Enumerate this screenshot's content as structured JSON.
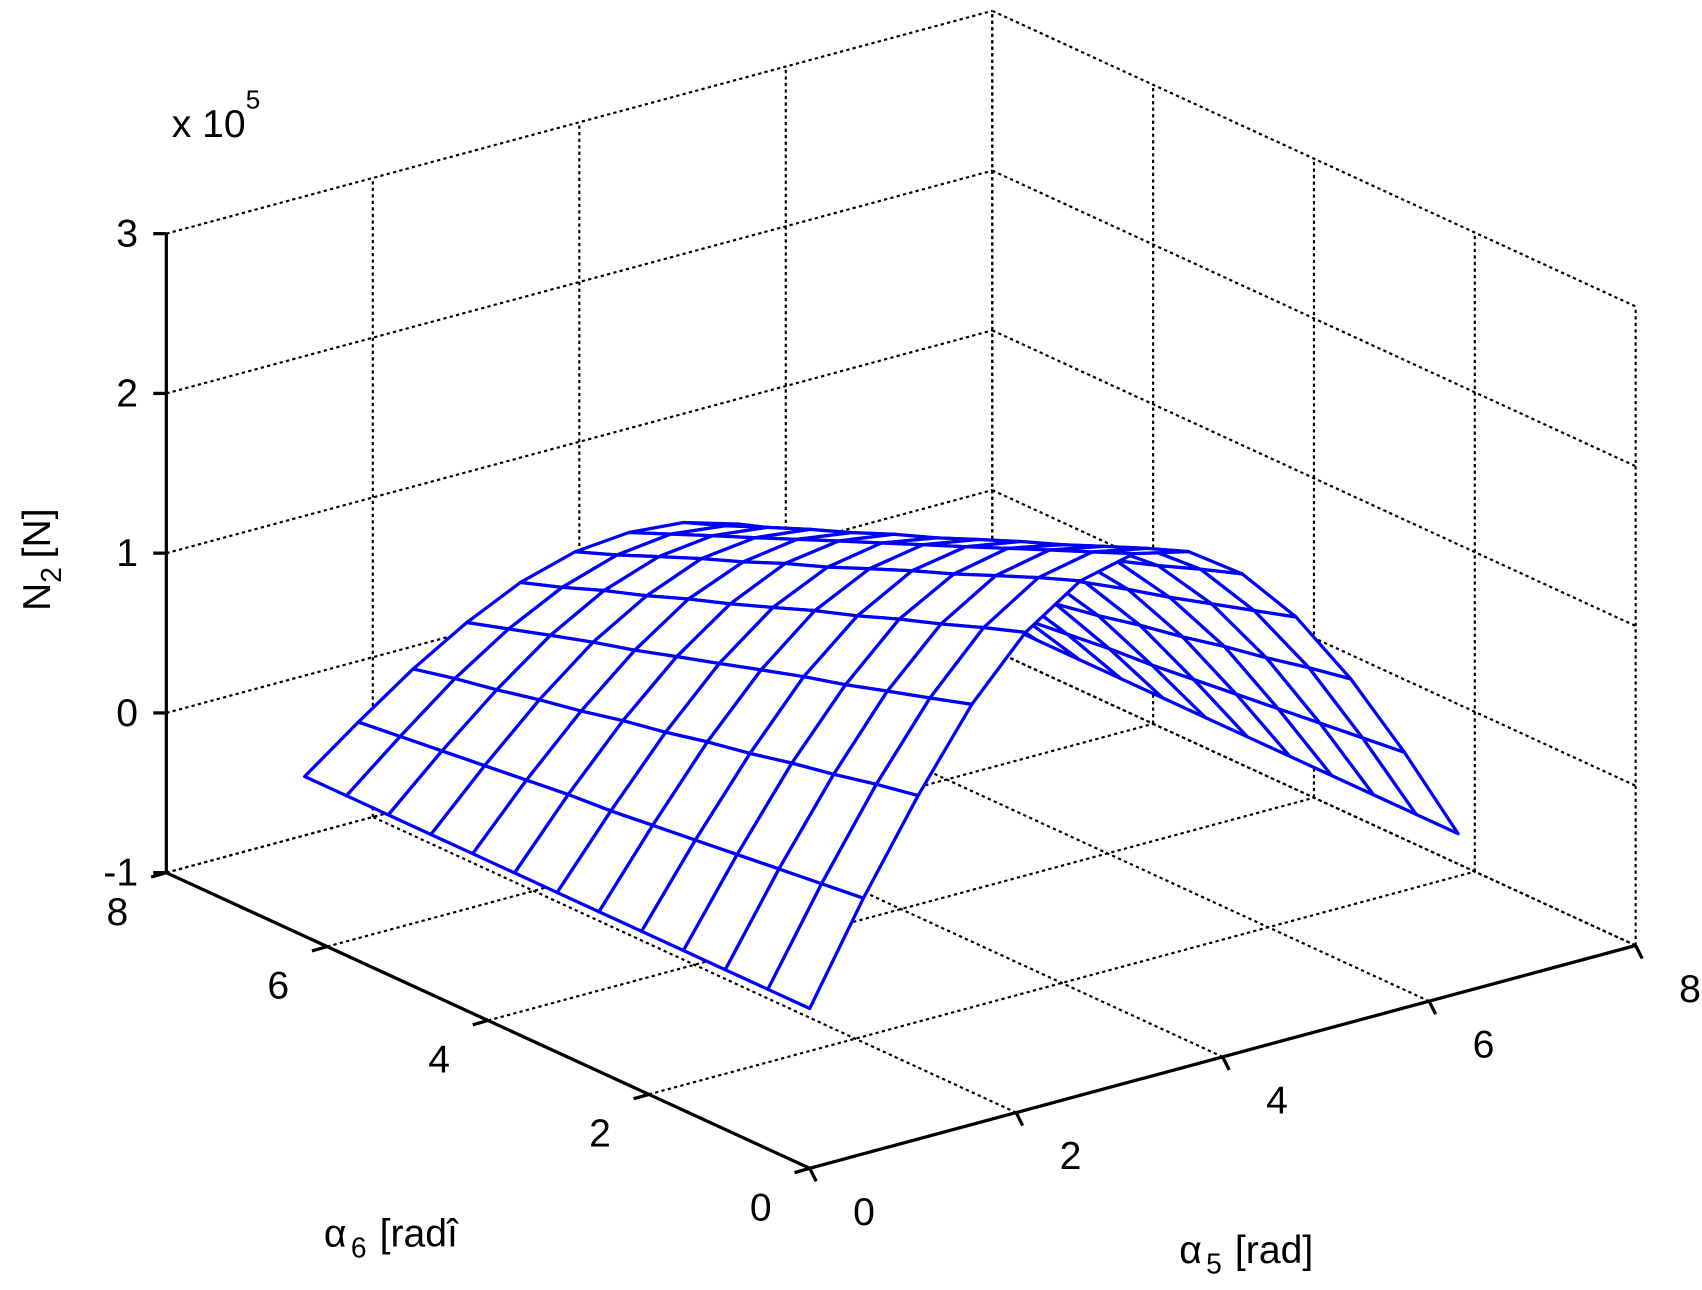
{
  "chart_data": {
    "type": "mesh3d",
    "color": "#0000ff",
    "grid": true,
    "x": [
      0,
      0.52,
      1.05,
      1.57,
      2.09,
      2.62,
      3.14,
      3.67,
      4.19,
      4.71,
      5.24,
      5.76,
      6.28
    ],
    "y": [
      0,
      0.52,
      1.05,
      1.57,
      2.09,
      2.62,
      3.14,
      3.67,
      4.19,
      4.71,
      5.24,
      5.76,
      6.28
    ],
    "z": [
      [
        0,
        0.6,
        1.15,
        1.63,
        1.99,
        2.22,
        2.3,
        2.22,
        1.99,
        1.63,
        1.15,
        0.6,
        0
      ],
      [
        0,
        0.57,
        1.1,
        1.55,
        1.9,
        2.12,
        2.19,
        2.12,
        1.9,
        1.55,
        1.1,
        0.57,
        0
      ],
      [
        0,
        0.54,
        1.04,
        1.47,
        1.8,
        2.01,
        2.08,
        2.01,
        1.8,
        1.47,
        1.04,
        0.54,
        0
      ],
      [
        0,
        0.51,
        0.99,
        1.39,
        1.71,
        1.9,
        1.97,
        1.9,
        1.71,
        1.39,
        0.99,
        0.51,
        0
      ],
      [
        0,
        0.48,
        0.93,
        1.32,
        1.61,
        1.8,
        1.86,
        1.8,
        1.61,
        1.32,
        0.93,
        0.48,
        0
      ],
      [
        0,
        0.45,
        0.88,
        1.24,
        1.52,
        1.69,
        1.75,
        1.69,
        1.52,
        1.24,
        0.88,
        0.45,
        0
      ],
      [
        0,
        0.42,
        0.82,
        1.16,
        1.42,
        1.58,
        1.64,
        1.58,
        1.42,
        1.16,
        0.82,
        0.42,
        0
      ],
      [
        0,
        0.4,
        0.77,
        1.08,
        1.32,
        1.48,
        1.53,
        1.48,
        1.32,
        1.08,
        0.77,
        0.4,
        0
      ],
      [
        0,
        0.37,
        0.71,
        1.0,
        1.23,
        1.37,
        1.42,
        1.37,
        1.23,
        1.0,
        0.71,
        0.37,
        0
      ],
      [
        0,
        0.34,
        0.66,
        0.93,
        1.13,
        1.27,
        1.31,
        1.27,
        1.13,
        0.93,
        0.66,
        0.34,
        0
      ],
      [
        0,
        0.31,
        0.6,
        0.85,
        1.04,
        1.16,
        1.2,
        1.16,
        1.04,
        0.85,
        0.6,
        0.31,
        0
      ],
      [
        0,
        0.28,
        0.55,
        0.77,
        0.94,
        1.05,
        1.09,
        1.05,
        0.94,
        0.77,
        0.55,
        0.28,
        0
      ],
      [
        0,
        0.25,
        0.49,
        0.69,
        0.85,
        0.95,
        0.98,
        0.95,
        0.85,
        0.69,
        0.49,
        0.25,
        0
      ]
    ],
    "xlim": [
      0,
      8
    ],
    "xticks": [
      0,
      2,
      4,
      6,
      8
    ],
    "ylim": [
      0,
      8
    ],
    "yticks": [
      0,
      2,
      4,
      6,
      8
    ],
    "zlim": [
      -1,
      3
    ],
    "zticks": [
      -1,
      0,
      1,
      2,
      3
    ],
    "zmultiplier": {
      "base": "x 10",
      "exponent": "5"
    },
    "xlabel": {
      "symbol": "α",
      "subscript": "5",
      "unit": "[rad]"
    },
    "ylabel": {
      "symbol": "α",
      "subscript": "6",
      "unit": "[radî"
    },
    "zlabel": {
      "symbol": "N",
      "subscript": "2",
      "unit": "[N]"
    }
  }
}
